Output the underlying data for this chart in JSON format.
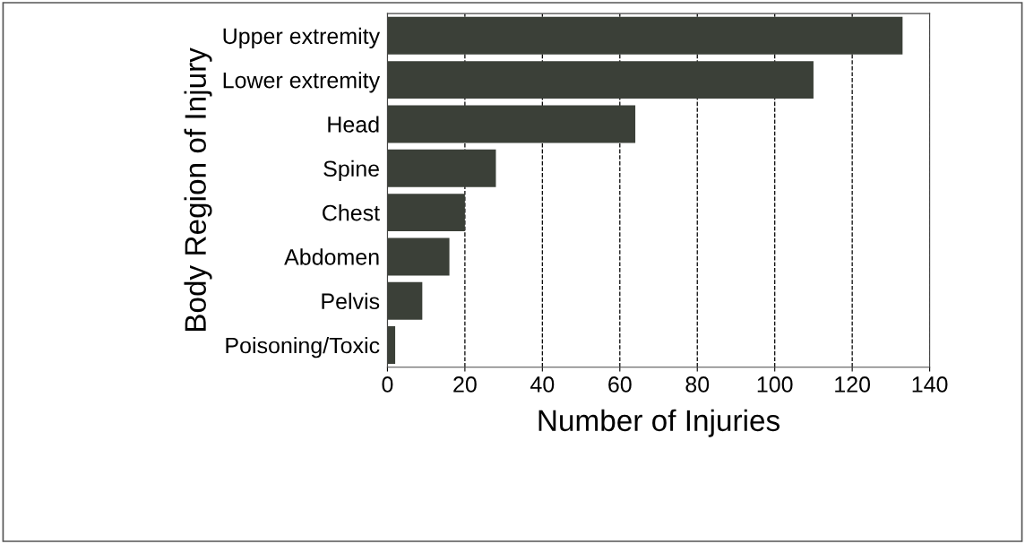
{
  "chart_data": {
    "type": "bar",
    "orientation": "horizontal",
    "xlabel": "Number of Injuries",
    "ylabel": "Body Region of Injury",
    "categories": [
      "Upper extremity",
      "Lower extremity",
      "Head",
      "Spine",
      "Chest",
      "Abdomen",
      "Pelvis",
      "Poisoning/Toxic"
    ],
    "values": [
      133,
      110,
      64,
      28,
      20,
      16,
      9,
      2
    ],
    "color": "#3b4038",
    "xlim": [
      0,
      140
    ],
    "xticks": [
      0,
      20,
      40,
      60,
      80,
      100,
      120,
      140
    ],
    "grid": "x",
    "line_style": "dashed",
    "legend": false
  }
}
